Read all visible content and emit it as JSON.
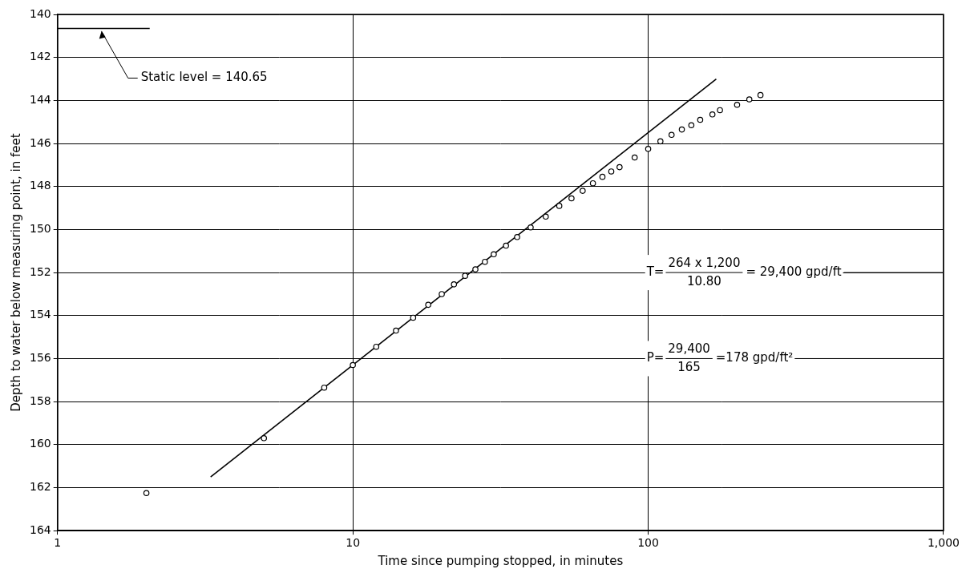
{
  "chart_data": {
    "type": "scatter",
    "x_label": "Time since pumping stopped, in minutes",
    "y_label": "Depth to water below measuring point, in feet",
    "log": "x",
    "grid": true,
    "xlim": [
      1,
      1000
    ],
    "xticks": [
      1,
      10,
      100,
      {
        "value": 1000,
        "label": "1,000"
      }
    ],
    "ylim": [
      164,
      140
    ],
    "yticks": [
      140,
      142,
      144,
      146,
      148,
      150,
      152,
      154,
      156,
      158,
      160,
      162,
      164
    ],
    "static_level": {
      "value": 140.65,
      "label": "Static level = 140.65"
    },
    "annotations": [
      {
        "lhs": "T=",
        "numerator": "264 x 1,200",
        "denominator": "10.80",
        "rhs": "= 29,400 gpd/ft"
      },
      {
        "lhs": "P=",
        "numerator": "29,400",
        "denominator": "165",
        "rhs": "=178 gpd/ft²"
      }
    ],
    "series": [
      {
        "type": "scatter",
        "marker": "circle",
        "color": "#000000",
        "x": [
          2,
          5,
          8,
          10,
          12,
          14,
          16,
          18,
          20,
          22,
          24,
          26,
          28,
          30,
          33,
          36,
          40,
          45,
          50,
          55,
          60,
          65,
          70,
          75,
          80,
          90,
          100,
          110,
          120,
          130,
          140,
          150,
          165,
          175,
          200,
          220,
          240
        ],
        "values": [
          162.25,
          159.7,
          157.35,
          156.3,
          155.45,
          154.7,
          154.1,
          153.5,
          153.0,
          152.55,
          152.15,
          151.85,
          151.5,
          151.15,
          150.75,
          150.35,
          149.9,
          149.4,
          148.9,
          148.55,
          148.2,
          147.85,
          147.55,
          147.3,
          147.1,
          146.65,
          146.25,
          145.9,
          145.6,
          145.35,
          145.15,
          144.9,
          144.65,
          144.45,
          144.2,
          143.95,
          143.75
        ]
      },
      {
        "type": "line",
        "line_style": "solid",
        "color": "#000000",
        "x": [
          3.3,
          170
        ],
        "values": [
          161.5,
          143.0
        ]
      }
    ]
  }
}
